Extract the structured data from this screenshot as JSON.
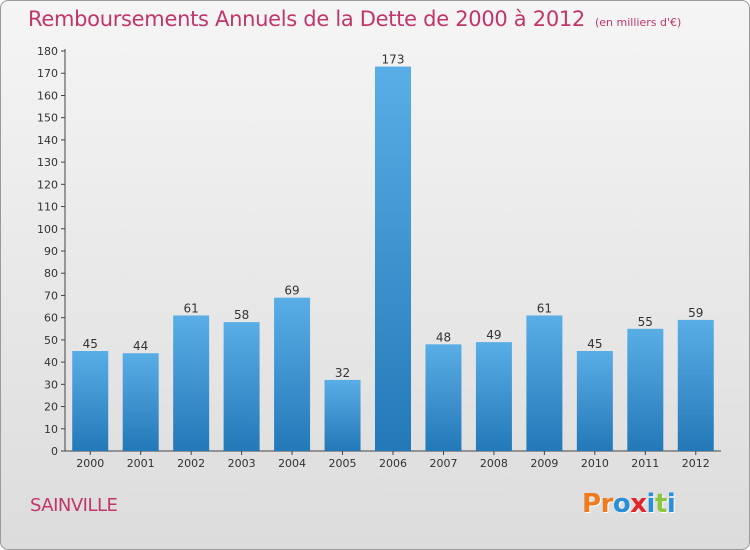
{
  "page": {
    "title": "Remboursements Annuels de la Dette de 2000 à 2012",
    "unit": "(en milliers d'€)",
    "commune": "SAINVILLE",
    "logo": "Proxiti",
    "logo_colors": [
      "#f07b1e",
      "#f07b1e",
      "#2a8fd6",
      "#e2262d",
      "#2a8fd6",
      "#8cc63f",
      "#2a8fd6"
    ]
  },
  "chart_data": {
    "type": "bar",
    "categories": [
      "2000",
      "2001",
      "2002",
      "2003",
      "2004",
      "2005",
      "2006",
      "2007",
      "2008",
      "2009",
      "2010",
      "2011",
      "2012"
    ],
    "values": [
      45,
      44,
      61,
      58,
      69,
      32,
      173,
      48,
      49,
      61,
      45,
      55,
      59
    ],
    "ylim": [
      0,
      180
    ],
    "yticks": [
      0,
      10,
      20,
      30,
      40,
      50,
      60,
      70,
      80,
      90,
      100,
      110,
      120,
      130,
      140,
      150,
      160,
      170,
      180
    ],
    "grid": false,
    "data_labels": true,
    "bar_color_light": "#5aaee6",
    "bar_color_dark": "#2378b8",
    "xlabel": "",
    "ylabel": ""
  }
}
